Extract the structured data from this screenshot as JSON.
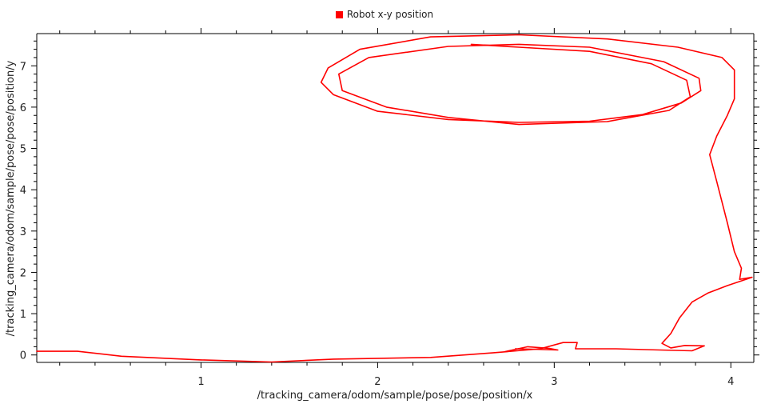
{
  "chart_data": {
    "type": "line",
    "xlabel": "/tracking_camera/odom/sample/pose/pose/position/x",
    "ylabel": "/tracking_camera/odom/sample/pose/pose/position/y",
    "xlim": [
      0.07,
      4.13
    ],
    "ylim": [
      -0.18,
      7.78
    ],
    "x_ticks": [
      1,
      2,
      3,
      4
    ],
    "y_ticks": [
      0,
      1,
      2,
      3,
      4,
      5,
      6,
      7
    ],
    "grid": false,
    "legend": "top-center",
    "series": [
      {
        "name": "Robot x-y position",
        "color": "#ff0000",
        "points": [
          [
            0.07,
            0.09
          ],
          [
            0.3,
            0.09
          ],
          [
            0.55,
            -0.03
          ],
          [
            1.0,
            -0.12
          ],
          [
            1.4,
            -0.17
          ],
          [
            1.75,
            -0.1
          ],
          [
            2.3,
            -0.06
          ],
          [
            2.65,
            0.05
          ],
          [
            2.92,
            0.15
          ],
          [
            3.05,
            0.3
          ],
          [
            3.13,
            0.3
          ],
          [
            3.12,
            0.15
          ],
          [
            3.35,
            0.15
          ],
          [
            3.6,
            0.12
          ],
          [
            3.78,
            0.1
          ],
          [
            3.85,
            0.22
          ],
          [
            3.74,
            0.23
          ],
          [
            3.66,
            0.17
          ],
          [
            3.61,
            0.28
          ],
          [
            3.66,
            0.52
          ],
          [
            3.71,
            0.9
          ],
          [
            3.78,
            1.28
          ],
          [
            3.87,
            1.5
          ],
          [
            3.98,
            1.68
          ],
          [
            4.12,
            1.88
          ],
          [
            4.05,
            1.83
          ],
          [
            4.06,
            2.1
          ],
          [
            4.02,
            2.5
          ],
          [
            3.98,
            3.2
          ],
          [
            3.92,
            4.2
          ],
          [
            3.88,
            4.85
          ],
          [
            3.92,
            5.3
          ],
          [
            3.98,
            5.8
          ],
          [
            4.02,
            6.2
          ],
          [
            4.02,
            6.9
          ],
          [
            3.95,
            7.2
          ],
          [
            3.7,
            7.45
          ],
          [
            3.3,
            7.65
          ],
          [
            2.8,
            7.75
          ],
          [
            2.3,
            7.7
          ],
          [
            1.9,
            7.4
          ],
          [
            1.72,
            6.95
          ],
          [
            1.68,
            6.6
          ],
          [
            1.75,
            6.3
          ],
          [
            2.0,
            5.9
          ],
          [
            2.4,
            5.7
          ],
          [
            2.8,
            5.63
          ],
          [
            3.2,
            5.66
          ],
          [
            3.5,
            5.82
          ],
          [
            3.72,
            6.1
          ],
          [
            3.83,
            6.4
          ],
          [
            3.82,
            6.7
          ],
          [
            3.62,
            7.1
          ],
          [
            3.2,
            7.45
          ],
          [
            2.8,
            7.52
          ],
          [
            2.4,
            7.47
          ],
          [
            1.95,
            7.2
          ],
          [
            1.78,
            6.8
          ],
          [
            1.8,
            6.4
          ],
          [
            2.05,
            6.0
          ],
          [
            2.4,
            5.75
          ],
          [
            2.8,
            5.58
          ],
          [
            3.3,
            5.65
          ],
          [
            3.65,
            5.92
          ],
          [
            3.77,
            6.25
          ],
          [
            3.75,
            6.65
          ],
          [
            3.55,
            7.05
          ],
          [
            3.2,
            7.35
          ],
          [
            2.8,
            7.45
          ],
          [
            2.53,
            7.52
          ]
        ]
      },
      {
        "name": "",
        "color": "#ff0000",
        "points": [
          [
            2.72,
            0.08
          ],
          [
            2.85,
            0.2
          ],
          [
            2.97,
            0.16
          ],
          [
            3.02,
            0.12
          ],
          [
            2.88,
            0.14
          ],
          [
            2.78,
            0.15
          ]
        ]
      }
    ]
  }
}
